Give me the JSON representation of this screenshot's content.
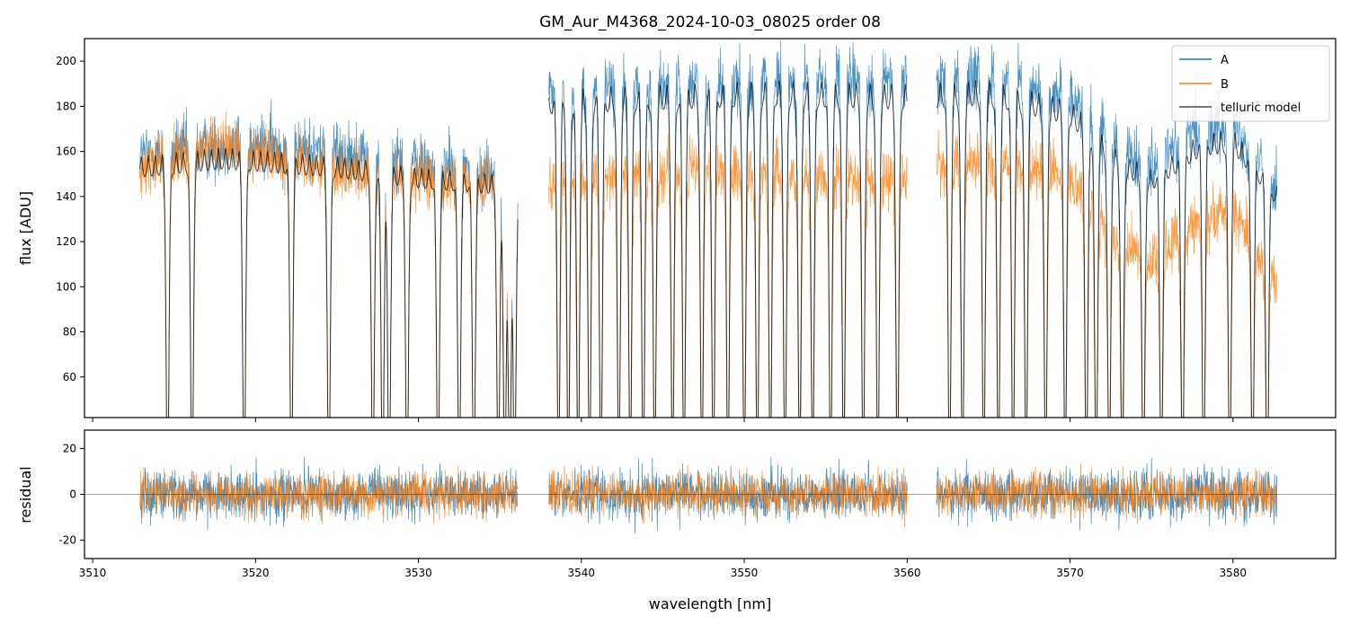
{
  "chart_data": [
    {
      "type": "line",
      "panel": "top",
      "title": "GM_Aur_M4368_2024-10-03_08025  order 08",
      "xlabel": "",
      "ylabel": "flux [ADU]",
      "xlim": [
        3509.5,
        3586.3
      ],
      "ylim": [
        42,
        210
      ],
      "yticks": [
        60,
        80,
        100,
        120,
        140,
        160,
        180,
        200
      ],
      "xticks": [
        3510,
        3520,
        3530,
        3540,
        3550,
        3560,
        3570,
        3580
      ],
      "tick_labels_x_shown": false,
      "legend_placement": "top-right",
      "segments": [
        [
          3512.9,
          3536.1
        ],
        [
          3538.0,
          3560.0
        ],
        [
          3561.8,
          3582.7
        ]
      ],
      "series": [
        {
          "name": "A",
          "color": "#1f77b4",
          "style": "noisy",
          "continuum_x": [
            3512.9,
            3518,
            3525,
            3530,
            3535,
            3536.1,
            3538.0,
            3545,
            3552,
            3560.0,
            3561.8,
            3565,
            3570,
            3573,
            3575,
            3578,
            3580,
            3582.7
          ],
          "continuum_y": [
            158,
            163,
            160,
            154,
            150,
            148,
            188,
            190,
            192,
            190,
            191,
            192,
            185,
            162,
            155,
            170,
            172,
            145
          ],
          "noise": 10
        },
        {
          "name": "B",
          "color": "#ff7f0e",
          "style": "noisy",
          "continuum_x": [
            3512.9,
            3518,
            3525,
            3530,
            3535,
            3536.1,
            3538.0,
            3545,
            3552,
            3560.0,
            3561.8,
            3565,
            3570,
            3573,
            3575,
            3578,
            3580,
            3582.7
          ],
          "continuum_y": [
            152,
            163,
            152,
            148,
            145,
            144,
            148,
            152,
            150,
            148,
            155,
            155,
            150,
            118,
            112,
            130,
            135,
            100
          ],
          "noise": 9
        },
        {
          "name": "telluric model",
          "color": "#000000",
          "style": "smooth",
          "continuum_x": [
            3512.9,
            3518,
            3525,
            3530,
            3535,
            3536.1,
            3538.0,
            3545,
            3552,
            3560.0,
            3561.8,
            3565,
            3570,
            3573,
            3575,
            3578,
            3580,
            3582.7
          ],
          "continuum_y": [
            158,
            162,
            158,
            153,
            150,
            148,
            188,
            190,
            192,
            190,
            191,
            192,
            183,
            160,
            152,
            168,
            170,
            145
          ],
          "noise": 0
        }
      ],
      "absorption_lines": [
        3514.6,
        3516.1,
        3519.3,
        3522.2,
        3524.5,
        3527.2,
        3527.8,
        3528.2,
        3529.3,
        3531.2,
        3532.5,
        3533.4,
        3534.9,
        3535.3,
        3535.6,
        3535.9,
        3538.6,
        3539.2,
        3539.8,
        3540.5,
        3541.2,
        3542.3,
        3543.0,
        3543.8,
        3544.5,
        3545.6,
        3546.3,
        3547.4,
        3548.1,
        3549.0,
        3550.0,
        3550.8,
        3551.6,
        3552.5,
        3553.4,
        3554.2,
        3555.3,
        3556.1,
        3557.3,
        3558.2,
        3559.4,
        3562.6,
        3563.4,
        3564.7,
        3565.6,
        3566.5,
        3567.3,
        3568.5,
        3569.7,
        3571.0,
        3571.6,
        3572.4,
        3573.2,
        3574.5,
        3575.6,
        3576.9,
        3578.2,
        3579.8,
        3581.2,
        3582.1
      ]
    },
    {
      "type": "line",
      "panel": "bottom",
      "title": "",
      "xlabel": "wavelength [nm]",
      "ylabel": "residual",
      "xlim": [
        3509.5,
        3586.3
      ],
      "ylim": [
        -28,
        28
      ],
      "yticks": [
        -20,
        0,
        20
      ],
      "xticks": [
        3510,
        3520,
        3530,
        3540,
        3550,
        3560,
        3570,
        3580
      ],
      "zero_line": true,
      "segments": [
        [
          3512.9,
          3536.1
        ],
        [
          3538.0,
          3560.0
        ],
        [
          3561.8,
          3582.7
        ]
      ],
      "series": [
        {
          "color": "#1f77b4",
          "amplitude": 14
        },
        {
          "color": "#ff7f0e",
          "amplitude": 12
        }
      ]
    }
  ]
}
